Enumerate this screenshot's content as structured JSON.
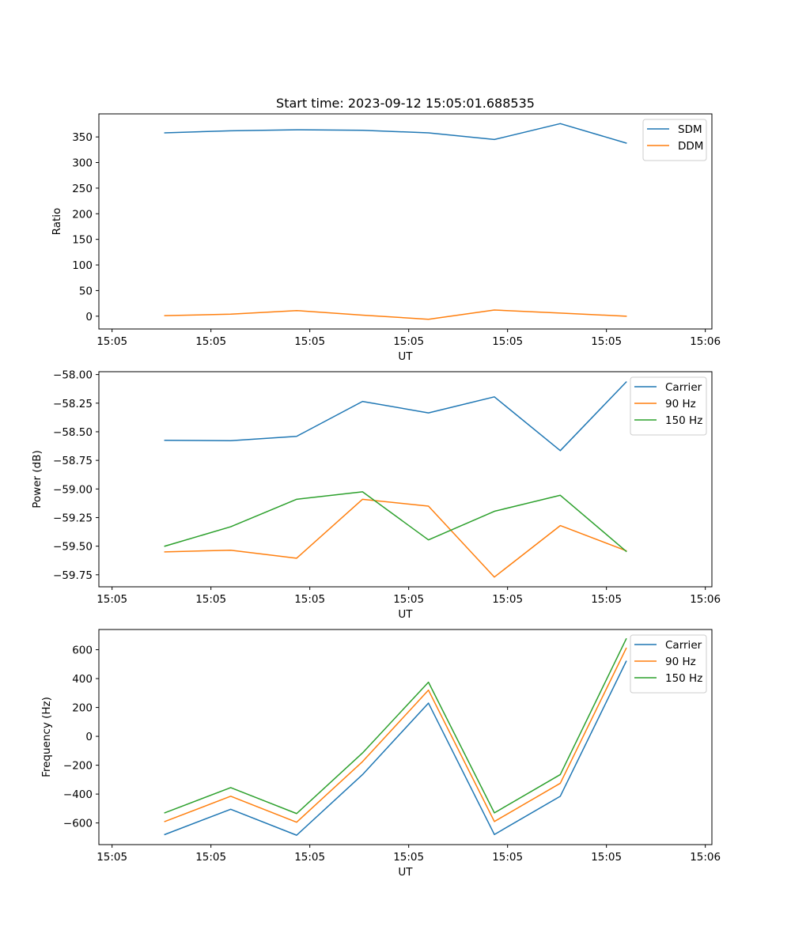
{
  "title": "Start time: 2023-09-12 15:05:01.688535",
  "colors": {
    "blue": "#1f77b4",
    "orange": "#ff7f0e",
    "green": "#2ca02c"
  },
  "chart_data": [
    {
      "type": "line",
      "title": "Start time: 2023-09-12 15:05:01.688535",
      "xlabel": "UT",
      "ylabel": "Ratio",
      "x": [
        1,
        2,
        3,
        4,
        5,
        6,
        7,
        8
      ],
      "xlim": [
        0,
        9.3
      ],
      "x_ticks": [
        0.2,
        1.7,
        3.2,
        4.7,
        6.2,
        7.7,
        9.2
      ],
      "x_tick_labels": [
        "15:05",
        "15:05",
        "15:05",
        "15:05",
        "15:05",
        "15:05",
        "15:06"
      ],
      "ylim": [
        -25,
        395
      ],
      "y_ticks": [
        0,
        50,
        100,
        150,
        200,
        250,
        300,
        350
      ],
      "y_tick_labels": [
        "0",
        "50",
        "100",
        "150",
        "200",
        "250",
        "300",
        "350"
      ],
      "legend_position": "upper right",
      "series": [
        {
          "name": "SDM",
          "color": "#1f77b4",
          "values": [
            358,
            362,
            364,
            363,
            358,
            345,
            376,
            338
          ]
        },
        {
          "name": "DDM",
          "color": "#ff7f0e",
          "values": [
            1,
            4,
            11,
            2,
            -6,
            12,
            6,
            0
          ]
        }
      ]
    },
    {
      "type": "line",
      "xlabel": "UT",
      "ylabel": "Power (dB)",
      "x": [
        1,
        2,
        3,
        4,
        5,
        6,
        7,
        8
      ],
      "xlim": [
        0,
        9.3
      ],
      "x_ticks": [
        0.2,
        1.7,
        3.2,
        4.7,
        6.2,
        7.7,
        9.2
      ],
      "x_tick_labels": [
        "15:05",
        "15:05",
        "15:05",
        "15:05",
        "15:05",
        "15:05",
        "15:06"
      ],
      "ylim": [
        -59.855,
        -57.975
      ],
      "y_ticks": [
        -59.75,
        -59.5,
        -59.25,
        -59.0,
        -58.75,
        -58.5,
        -58.25,
        -58.0
      ],
      "y_tick_labels": [
        "−59.75",
        "−59.50",
        "−59.25",
        "−59.00",
        "−58.75",
        "−58.50",
        "−58.25",
        "−58.00"
      ],
      "legend_position": "upper right",
      "series": [
        {
          "name": "Carrier",
          "color": "#1f77b4",
          "values": [
            -58.575,
            -58.578,
            -58.54,
            -58.235,
            -58.335,
            -58.195,
            -58.665,
            -58.065
          ]
        },
        {
          "name": "90 Hz",
          "color": "#ff7f0e",
          "values": [
            -59.55,
            -59.535,
            -59.605,
            -59.09,
            -59.15,
            -59.77,
            -59.32,
            -59.54
          ]
        },
        {
          "name": "150 Hz",
          "color": "#2ca02c",
          "values": [
            -59.5,
            -59.33,
            -59.09,
            -59.025,
            -59.445,
            -59.195,
            -59.055,
            -59.545
          ]
        }
      ]
    },
    {
      "type": "line",
      "xlabel": "UT",
      "ylabel": "Frequency (Hz)",
      "x": [
        1,
        2,
        3,
        4,
        5,
        6,
        7,
        8
      ],
      "xlim": [
        0,
        9.3
      ],
      "x_ticks": [
        0.2,
        1.7,
        3.2,
        4.7,
        6.2,
        7.7,
        9.2
      ],
      "x_tick_labels": [
        "15:05",
        "15:05",
        "15:05",
        "15:05",
        "15:05",
        "15:05",
        "15:06"
      ],
      "ylim": [
        -750,
        740
      ],
      "y_ticks": [
        -600,
        -400,
        -200,
        0,
        200,
        400,
        600
      ],
      "y_tick_labels": [
        "−600",
        "−400",
        "−200",
        "0",
        "200",
        "400",
        "600"
      ],
      "legend_position": "upper right",
      "series": [
        {
          "name": "Carrier",
          "color": "#1f77b4",
          "values": [
            -680,
            -505,
            -685,
            -265,
            230,
            -680,
            -415,
            520
          ]
        },
        {
          "name": "90 Hz",
          "color": "#ff7f0e",
          "values": [
            -590,
            -415,
            -595,
            -175,
            320,
            -590,
            -325,
            610
          ]
        },
        {
          "name": "150 Hz",
          "color": "#2ca02c",
          "values": [
            -530,
            -355,
            -535,
            -115,
            375,
            -530,
            -265,
            675
          ]
        }
      ]
    }
  ]
}
